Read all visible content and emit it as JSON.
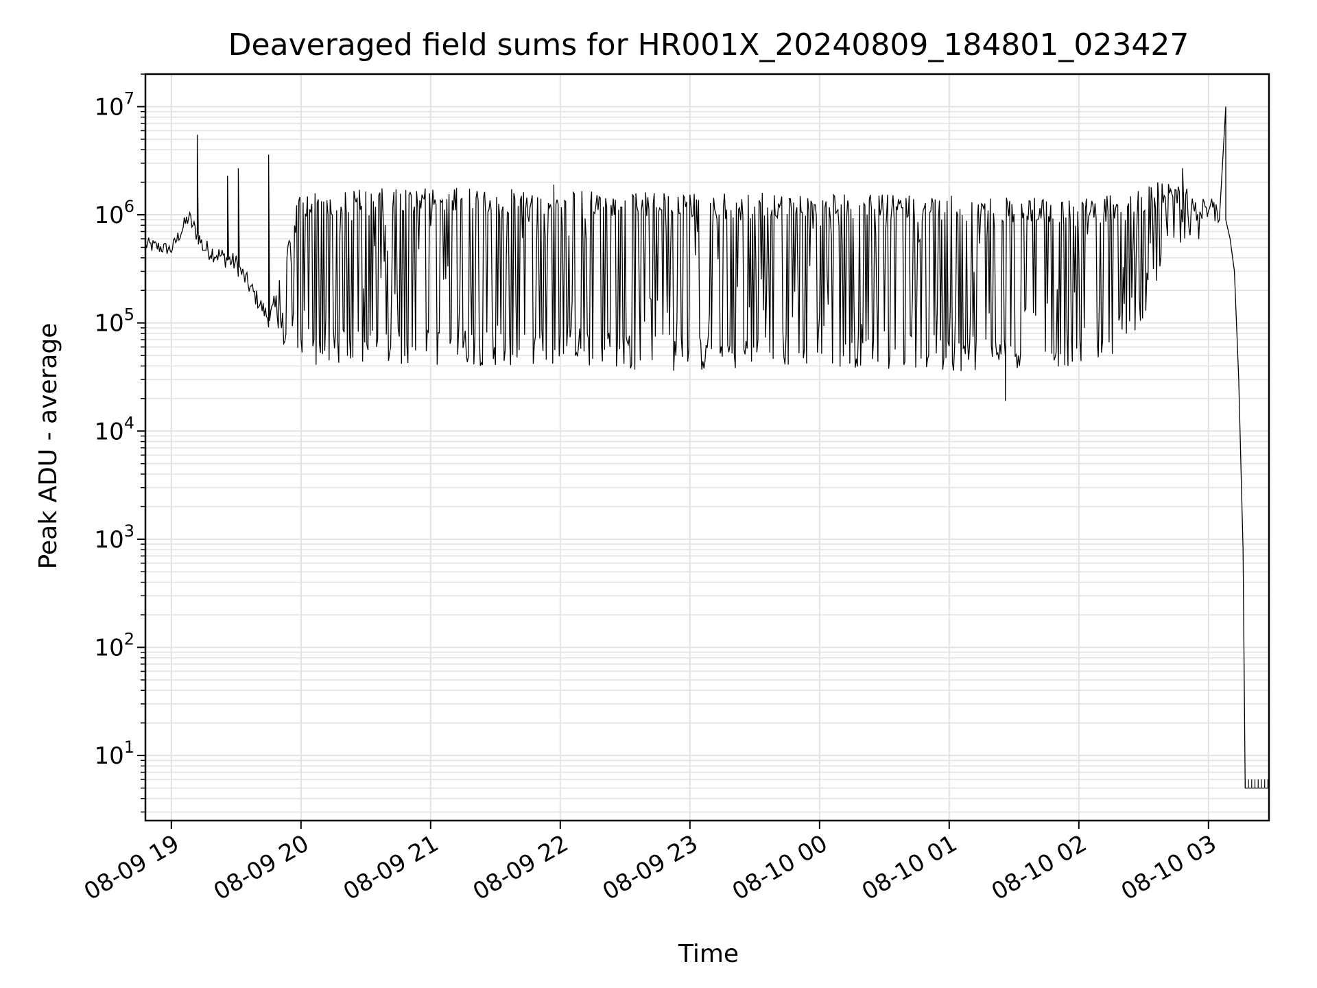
{
  "chart_data": {
    "type": "line",
    "title": "Deaveraged field sums for HR001X_20240809_184801_023427",
    "xlabel": "Time",
    "ylabel": "Peak ADU - average",
    "yscale": "log",
    "ylim": [
      2.5,
      20000000
    ],
    "xlim": [
      "2024-08-09 18:48",
      "2024-08-10 03:28"
    ],
    "grid": true,
    "line_color": "#000000",
    "grid_color": "#e3e3e3",
    "x_ticks": [
      {
        "t": "2024-08-09 19:00",
        "label": "08-09 19"
      },
      {
        "t": "2024-08-09 20:00",
        "label": "08-09 20"
      },
      {
        "t": "2024-08-09 21:00",
        "label": "08-09 21"
      },
      {
        "t": "2024-08-09 22:00",
        "label": "08-09 22"
      },
      {
        "t": "2024-08-09 23:00",
        "label": "08-09 23"
      },
      {
        "t": "2024-08-10 00:00",
        "label": "08-10 00"
      },
      {
        "t": "2024-08-10 01:00",
        "label": "08-10 01"
      },
      {
        "t": "2024-08-10 02:00",
        "label": "08-10 02"
      },
      {
        "t": "2024-08-10 03:00",
        "label": "08-10 03"
      }
    ],
    "y_ticks": [
      {
        "v": 10,
        "base": "10",
        "exp": "1"
      },
      {
        "v": 100,
        "base": "10",
        "exp": "2"
      },
      {
        "v": 1000,
        "base": "10",
        "exp": "3"
      },
      {
        "v": 10000,
        "base": "10",
        "exp": "4"
      },
      {
        "v": 100000,
        "base": "10",
        "exp": "5"
      },
      {
        "v": 1000000,
        "base": "10",
        "exp": "6"
      },
      {
        "v": 10000000,
        "base": "10",
        "exp": "7"
      }
    ],
    "series": [
      {
        "envelope": [
          {
            "t": "2024-08-09 18:48",
            "low": 400000,
            "high": 700000
          },
          {
            "t": "2024-08-09 19:00",
            "low": 380000,
            "high": 600000
          },
          {
            "t": "2024-08-09 19:08",
            "low": 700000,
            "high": 1300000
          },
          {
            "t": "2024-08-09 19:15",
            "low": 350000,
            "high": 700000
          },
          {
            "t": "2024-08-09 19:30",
            "low": 250000,
            "high": 500000
          },
          {
            "t": "2024-08-09 19:45",
            "low": 80000,
            "high": 150000
          },
          {
            "t": "2024-08-09 20:00",
            "low": 40000,
            "high": 1700000
          },
          {
            "t": "2024-08-09 21:00",
            "low": 40000,
            "high": 1800000
          },
          {
            "t": "2024-08-09 22:00",
            "low": 40000,
            "high": 1700000
          },
          {
            "t": "2024-08-09 23:00",
            "low": 35000,
            "high": 1600000
          },
          {
            "t": "2024-08-10 00:00",
            "low": 40000,
            "high": 1600000
          },
          {
            "t": "2024-08-10 01:00",
            "low": 35000,
            "high": 1500000
          },
          {
            "t": "2024-08-10 02:00",
            "low": 40000,
            "high": 1400000
          },
          {
            "t": "2024-08-10 02:25",
            "low": 60000,
            "high": 1600000
          },
          {
            "t": "2024-08-10 02:40",
            "low": 400000,
            "high": 2200000
          },
          {
            "t": "2024-08-10 03:05",
            "low": 700000,
            "high": 1400000
          }
        ],
        "spikes": [
          {
            "t": "2024-08-09 19:12",
            "v": 5500000
          },
          {
            "t": "2024-08-09 19:26",
            "v": 2300000
          },
          {
            "t": "2024-08-09 19:31",
            "v": 2700000
          },
          {
            "t": "2024-08-09 19:45",
            "v": 3600000
          },
          {
            "t": "2024-08-09 21:57",
            "v": 1900000
          },
          {
            "t": "2024-08-10 01:26",
            "v": 19000,
            "dip": true
          },
          {
            "t": "2024-08-10 02:48",
            "v": 2700000
          },
          {
            "t": "2024-08-10 03:08",
            "v": 10000000
          }
        ],
        "tail": [
          {
            "t": "2024-08-10 03:08",
            "v": 900000
          },
          {
            "t": "2024-08-10 03:10",
            "v": 600000
          },
          {
            "t": "2024-08-10 03:12",
            "v": 300000
          },
          {
            "t": "2024-08-10 03:14",
            "v": 30000
          },
          {
            "t": "2024-08-10 03:16",
            "v": 800
          },
          {
            "t": "2024-08-10 03:17",
            "v": 5
          },
          {
            "t": "2024-08-10 03:28",
            "v": 5
          }
        ]
      }
    ]
  }
}
